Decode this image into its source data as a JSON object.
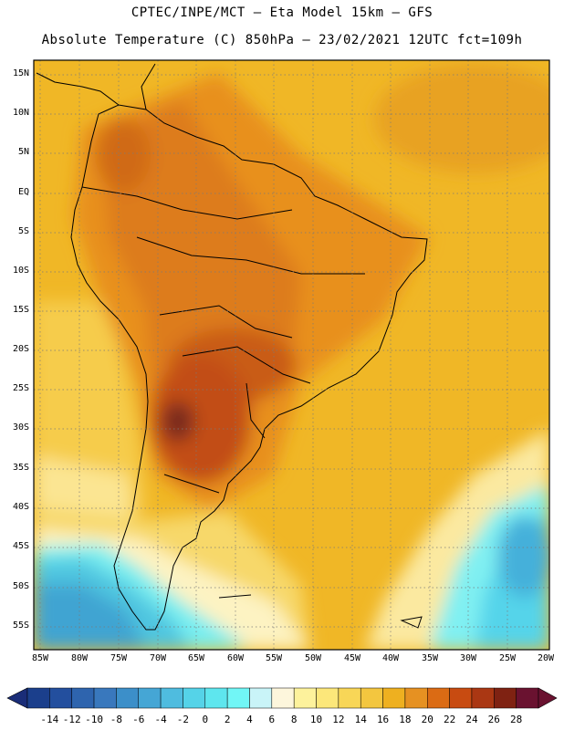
{
  "header": {
    "line1": "CPTEC/INPE/MCT –  Eta Model 15km – GFS",
    "line2": "Absolute Temperature (C) 850hPa – 23/02/2021 12UTC fct=109h"
  },
  "map": {
    "lat_labels": [
      "15N",
      "10N",
      "5N",
      "EQ",
      "5S",
      "10S",
      "15S",
      "20S",
      "25S",
      "30S",
      "35S",
      "40S",
      "45S",
      "50S",
      "55S"
    ],
    "lon_labels": [
      "85W",
      "80W",
      "75W",
      "70W",
      "65W",
      "60W",
      "55W",
      "50W",
      "45W",
      "40W",
      "35W",
      "30W",
      "25W",
      "20W"
    ]
  },
  "colorbar": {
    "labels": [
      "-14",
      "-12",
      "-10",
      "-8",
      "-6",
      "-4",
      "-2",
      "0",
      "2",
      "4",
      "6",
      "8",
      "10",
      "12",
      "14",
      "16",
      "18",
      "20",
      "22",
      "24",
      "26",
      "28"
    ],
    "colors": [
      "#1b3f8c",
      "#234f9e",
      "#2e64ae",
      "#3978bd",
      "#3c8fc9",
      "#45a6d5",
      "#4fbcdf",
      "#55d3e8",
      "#5ee6ee",
      "#71f6f6",
      "#c9f4f8",
      "#fdf6dc",
      "#fdf29c",
      "#fce77a",
      "#f8d657",
      "#f3c63f",
      "#eeb020",
      "#e69122",
      "#db6b14",
      "#c84b11",
      "#aa3713",
      "#7f2212",
      "#6a1230"
    ],
    "arrow_left_color": "#1a2d78",
    "arrow_right_color": "#6a1230"
  }
}
